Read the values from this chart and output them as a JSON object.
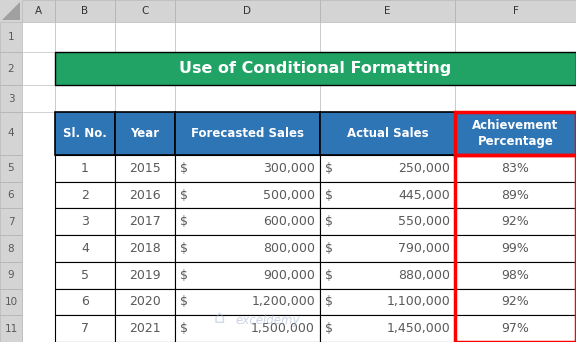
{
  "title": "Use of Conditional Formatting",
  "title_bg": "#21A366",
  "title_color": "#FFFFFF",
  "header_bg": "#2E75B6",
  "header_color": "#FFFFFF",
  "col_headers": [
    "Sl. No.",
    "Year",
    "Forecasted Sales",
    "Actual Sales",
    "Achievement\nPercentage"
  ],
  "rows": [
    [
      "1",
      "2015",
      "300,000",
      "250,000",
      "83%"
    ],
    [
      "2",
      "2016",
      "500,000",
      "445,000",
      "89%"
    ],
    [
      "3",
      "2017",
      "600,000",
      "550,000",
      "92%"
    ],
    [
      "4",
      "2018",
      "800,000",
      "790,000",
      "99%"
    ],
    [
      "5",
      "2019",
      "900,000",
      "880,000",
      "98%"
    ],
    [
      "6",
      "2020",
      "1,200,000",
      "1,100,000",
      "92%"
    ],
    [
      "7",
      "2021",
      "1,500,000",
      "1,450,000",
      "97%"
    ]
  ],
  "grid_color": "#000000",
  "cell_bg": "#FFFFFF",
  "text_color": "#595959",
  "highlight_border_color": "#FF0000",
  "col_header_bg": "#D9D9D9",
  "col_header_color": "#595959",
  "row_header_bg": "#D9D9D9",
  "row_header_color": "#595959",
  "watermark_text": "exceldemy"
}
